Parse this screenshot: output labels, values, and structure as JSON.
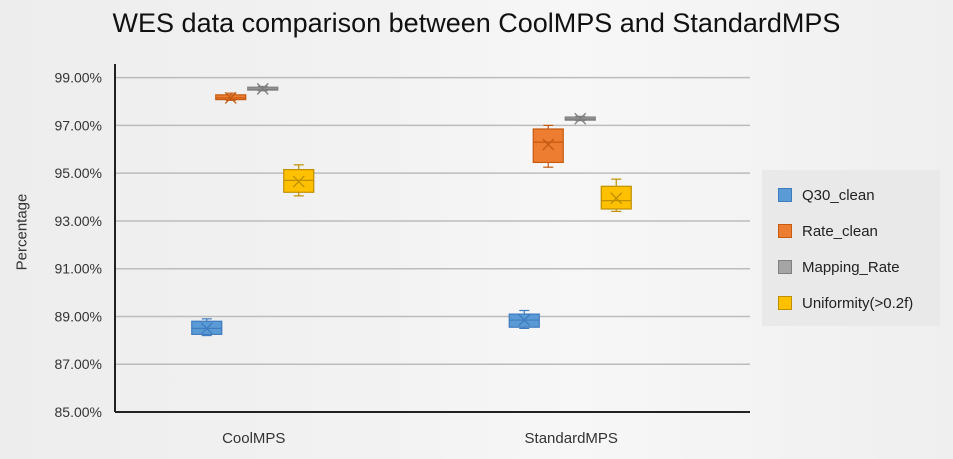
{
  "chart_data": {
    "type": "box",
    "title": "WES data comparison between CoolMPS and StandardMPS",
    "ylabel": "Percentage",
    "xlabel": "",
    "ylim": [
      85,
      99.99
    ],
    "yticks": [
      "85.00%",
      "87.00%",
      "89.00%",
      "91.00%",
      "93.00%",
      "95.00%",
      "97.00%",
      "99.00%"
    ],
    "categories": [
      "CoolMPS",
      "StandardMPS"
    ],
    "grid": true,
    "legend_position": "right",
    "series": [
      {
        "name": "Q30_clean",
        "color": "#5b9bd5",
        "stroke": "#3f7bbf",
        "boxes": [
          {
            "min": 88.2,
            "q1": 88.25,
            "median": 88.5,
            "q3": 88.8,
            "max": 88.9,
            "mean": 88.5
          },
          {
            "min": 88.5,
            "q1": 88.55,
            "median": 88.85,
            "q3": 89.1,
            "max": 89.25,
            "mean": 88.85
          }
        ]
      },
      {
        "name": "Rate_clean",
        "color": "#ed7d31",
        "stroke": "#c55a11",
        "boxes": [
          {
            "min": 98.05,
            "q1": 98.08,
            "median": 98.15,
            "q3": 98.28,
            "max": 98.35,
            "mean": 98.15
          },
          {
            "min": 95.25,
            "q1": 95.45,
            "median": 96.3,
            "q3": 96.85,
            "max": 97.0,
            "mean": 96.2
          }
        ]
      },
      {
        "name": "Mapping_Rate",
        "color": "#a5a5a5",
        "stroke": "#7f7f7f",
        "boxes": [
          {
            "min": 98.45,
            "q1": 98.48,
            "median": 98.52,
            "q3": 98.6,
            "max": 98.63,
            "mean": 98.53
          },
          {
            "min": 97.2,
            "q1": 97.22,
            "median": 97.27,
            "q3": 97.35,
            "max": 97.38,
            "mean": 97.28
          }
        ]
      },
      {
        "name": "Uniformity(>0.2f)",
        "color": "#ffc000",
        "stroke": "#bf9000",
        "boxes": [
          {
            "min": 94.05,
            "q1": 94.2,
            "median": 94.7,
            "q3": 95.15,
            "max": 95.35,
            "mean": 94.65
          },
          {
            "min": 93.4,
            "q1": 93.5,
            "median": 93.85,
            "q3": 94.45,
            "max": 94.75,
            "mean": 93.95
          }
        ]
      }
    ]
  }
}
